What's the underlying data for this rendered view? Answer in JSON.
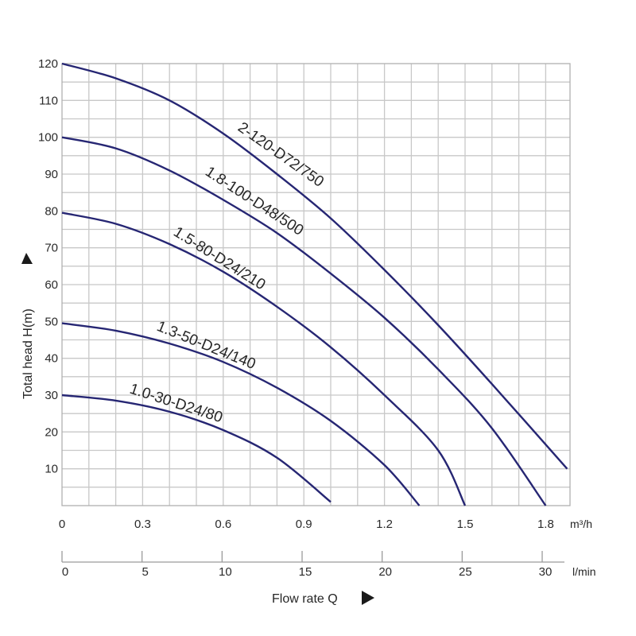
{
  "chart_data": {
    "type": "line",
    "title": "",
    "ylabel": "Total head H(m)",
    "xlabel": "Flow rate Q",
    "x_unit": "m³/h",
    "x2_unit": "l/min",
    "xlim": [
      0,
      1.88
    ],
    "ylim": [
      0,
      120
    ],
    "x_ticks": [
      0,
      0.3,
      0.6,
      0.9,
      1.2,
      1.5,
      1.8
    ],
    "x_tick_labels": [
      "0",
      "0.3",
      "0.6",
      "0.9",
      "1.2",
      "1.5",
      "1.8"
    ],
    "x2_ticks": [
      0,
      5,
      10,
      15,
      20,
      25,
      30
    ],
    "y_ticks": [
      10,
      20,
      30,
      40,
      50,
      60,
      70,
      80,
      90,
      100,
      110,
      120
    ],
    "grid": true,
    "series": [
      {
        "name": "2-120-D72/750",
        "x": [
          0,
          0.2,
          0.4,
          0.6,
          0.8,
          1.0,
          1.2,
          1.4,
          1.6,
          1.88
        ],
        "y": [
          120,
          116,
          110,
          101,
          90,
          78,
          64,
          49,
          33,
          10
        ]
      },
      {
        "name": "1.8-100-D48/500",
        "x": [
          0,
          0.2,
          0.4,
          0.6,
          0.8,
          1.0,
          1.2,
          1.4,
          1.6,
          1.8
        ],
        "y": [
          100,
          97,
          91,
          83,
          74,
          63,
          51,
          37,
          21,
          0
        ]
      },
      {
        "name": "1.5-80-D24/210",
        "x": [
          0,
          0.2,
          0.4,
          0.6,
          0.8,
          1.0,
          1.2,
          1.4,
          1.5
        ],
        "y": [
          79.5,
          76.5,
          71,
          63.5,
          54,
          43,
          30,
          15,
          0
        ]
      },
      {
        "name": "1.3-50-D24/140",
        "x": [
          0,
          0.2,
          0.4,
          0.6,
          0.8,
          1.0,
          1.2,
          1.33
        ],
        "y": [
          49.5,
          47.5,
          44,
          39,
          32,
          23,
          11,
          0
        ]
      },
      {
        "name": "1.0-30-D24/80",
        "x": [
          0,
          0.2,
          0.4,
          0.6,
          0.8,
          1.0
        ],
        "y": [
          30,
          28.5,
          25.5,
          20.5,
          13,
          1
        ]
      }
    ],
    "curve_colour": "#262673",
    "grid_colour": "#c8c8c8"
  }
}
